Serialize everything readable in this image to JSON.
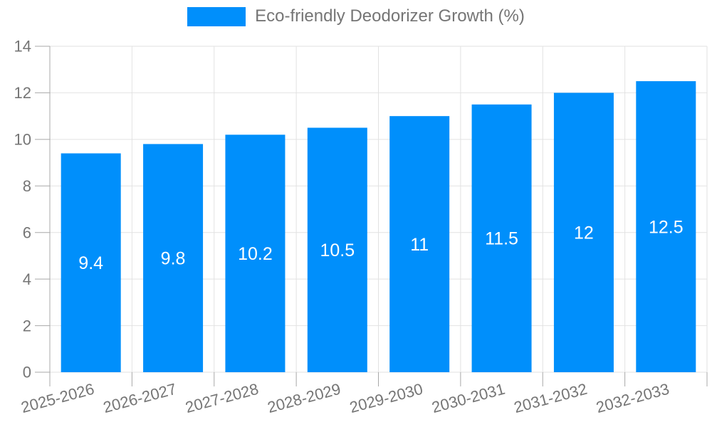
{
  "legend": {
    "label": "Eco-friendly Deodorizer Growth (%)"
  },
  "colors": {
    "bar": "#008FFB",
    "grid": "#e2e2e2",
    "axis": "#a8a8a8",
    "tick_label": "#757575",
    "value_label": "#ffffff",
    "background": "#ffffff"
  },
  "chart_data": {
    "type": "bar",
    "title": "",
    "legend_entries": [
      "Eco-friendly Deodorizer Growth (%)"
    ],
    "legend_position": "top",
    "categories": [
      "2025-2026",
      "2026-2027",
      "2027-2028",
      "2028-2029",
      "2029-2030",
      "2030-2031",
      "2031-2032",
      "2032-2033"
    ],
    "values": [
      9.4,
      9.8,
      10.2,
      10.5,
      11,
      11.5,
      12,
      12.5
    ],
    "value_labels": [
      "9.4",
      "9.8",
      "10.2",
      "10.5",
      "11",
      "11.5",
      "12",
      "12.5"
    ],
    "xlabel": "",
    "ylabel": "",
    "ylim": [
      0,
      14
    ],
    "yticks": [
      0,
      2,
      4,
      6,
      8,
      10,
      12,
      14
    ],
    "grid": true,
    "x_label_rotation_deg": -15
  }
}
